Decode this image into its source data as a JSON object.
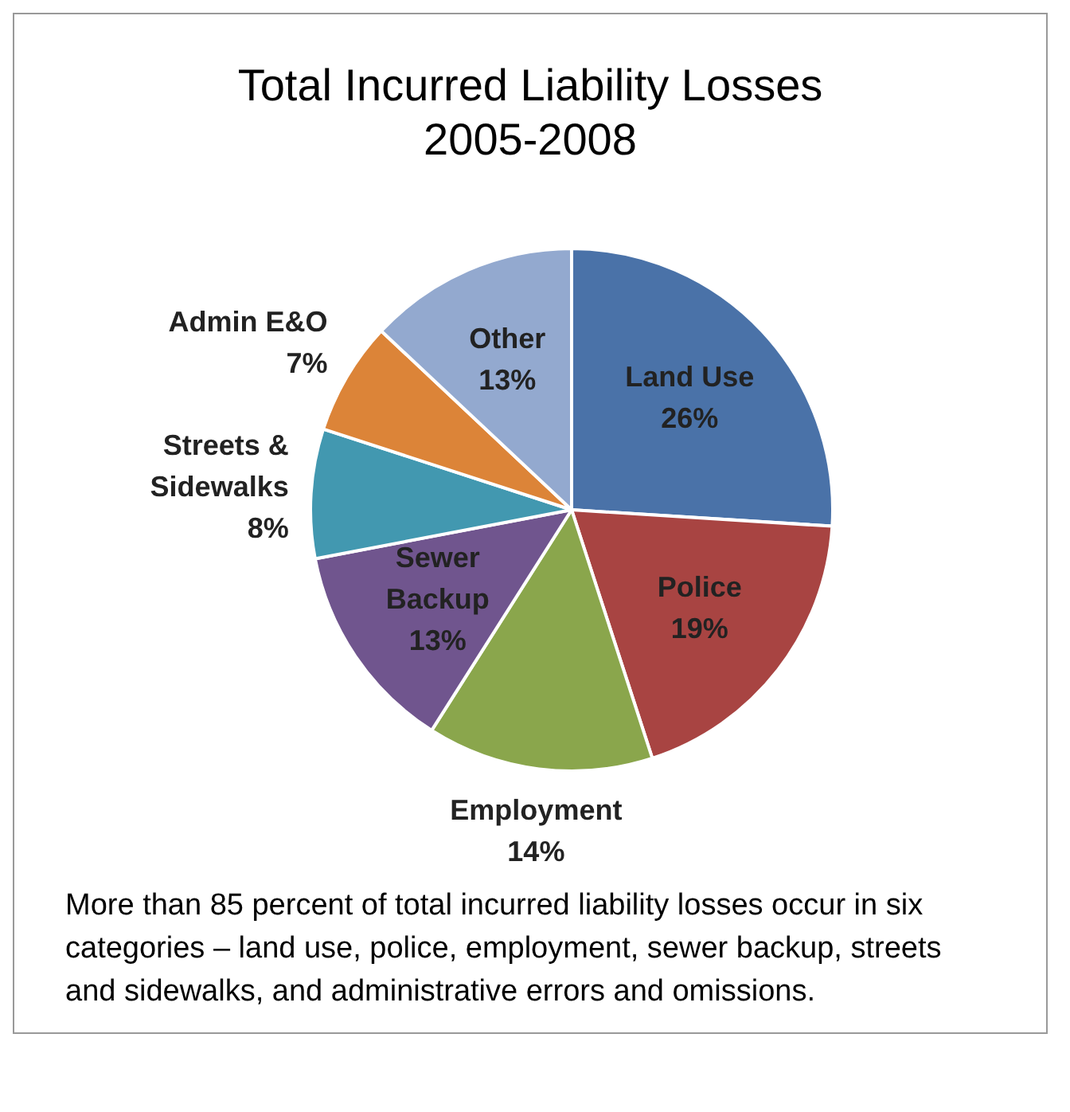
{
  "chart_data": {
    "type": "pie",
    "title": "Total Incurred Liability Losses\n2005-2008",
    "categories": [
      "Land Use",
      "Police",
      "Employment",
      "Sewer Backup",
      "Streets & Sidewalks",
      "Admin E&O",
      "Other"
    ],
    "values": [
      26,
      19,
      14,
      13,
      8,
      7,
      13
    ],
    "value_labels": [
      "26%",
      "19%",
      "14%",
      "13%",
      "8%",
      "7%",
      "13%"
    ],
    "colors": [
      "#4a72a8",
      "#a84442",
      "#8aa64c",
      "#70558e",
      "#4298b0",
      "#dc8438",
      "#93a9cf"
    ],
    "legend": false,
    "annotations": [
      "More than 85 percent of total incurred liability losses occur in six categories – land use, police, employment, sewer backup, streets and sidewalks, and administrative errors and omissions."
    ]
  }
}
